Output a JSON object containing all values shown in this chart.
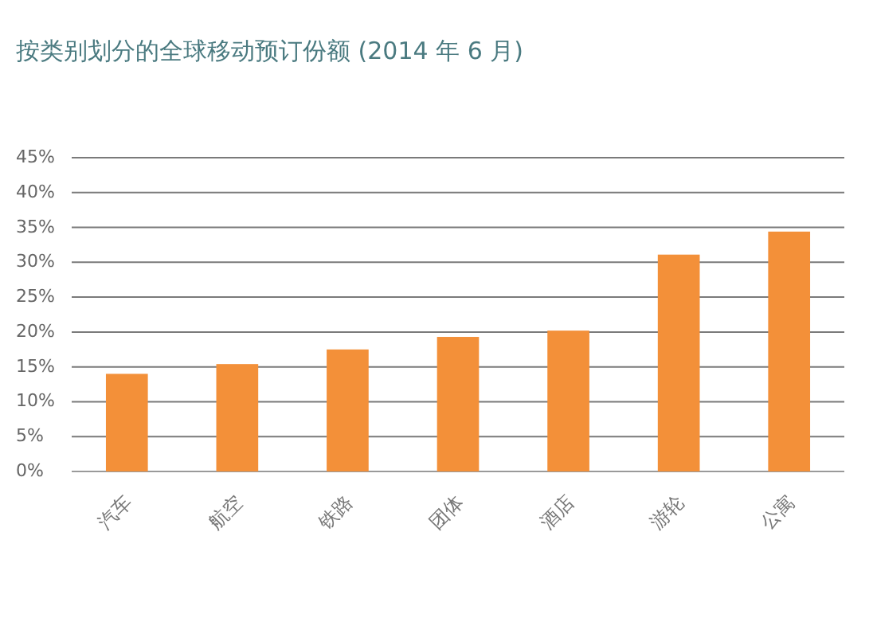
{
  "chart_data": {
    "type": "bar",
    "title": "按类别划分的全球移动预订份额 (2014 年 6 月)",
    "categories": [
      "汽车",
      "航空",
      "铁路",
      "团体",
      "酒店",
      "游轮",
      "公寓"
    ],
    "values": [
      14.0,
      15.4,
      17.5,
      19.3,
      20.2,
      31.1,
      34.4
    ],
    "color": "#f39039",
    "ylim": [
      0,
      45
    ],
    "yticks": [
      {
        "value": 0,
        "label": "0%"
      },
      {
        "value": 5,
        "label": "5%"
      },
      {
        "value": 10,
        "label": "10%"
      },
      {
        "value": 15,
        "label": "15%"
      },
      {
        "value": 20,
        "label": "20%"
      },
      {
        "value": 25,
        "label": "25%"
      },
      {
        "value": 30,
        "label": "30%"
      },
      {
        "value": 35,
        "label": "35%"
      },
      {
        "value": 40,
        "label": "40%"
      },
      {
        "value": 45,
        "label": "45%"
      }
    ],
    "grid": "y"
  }
}
